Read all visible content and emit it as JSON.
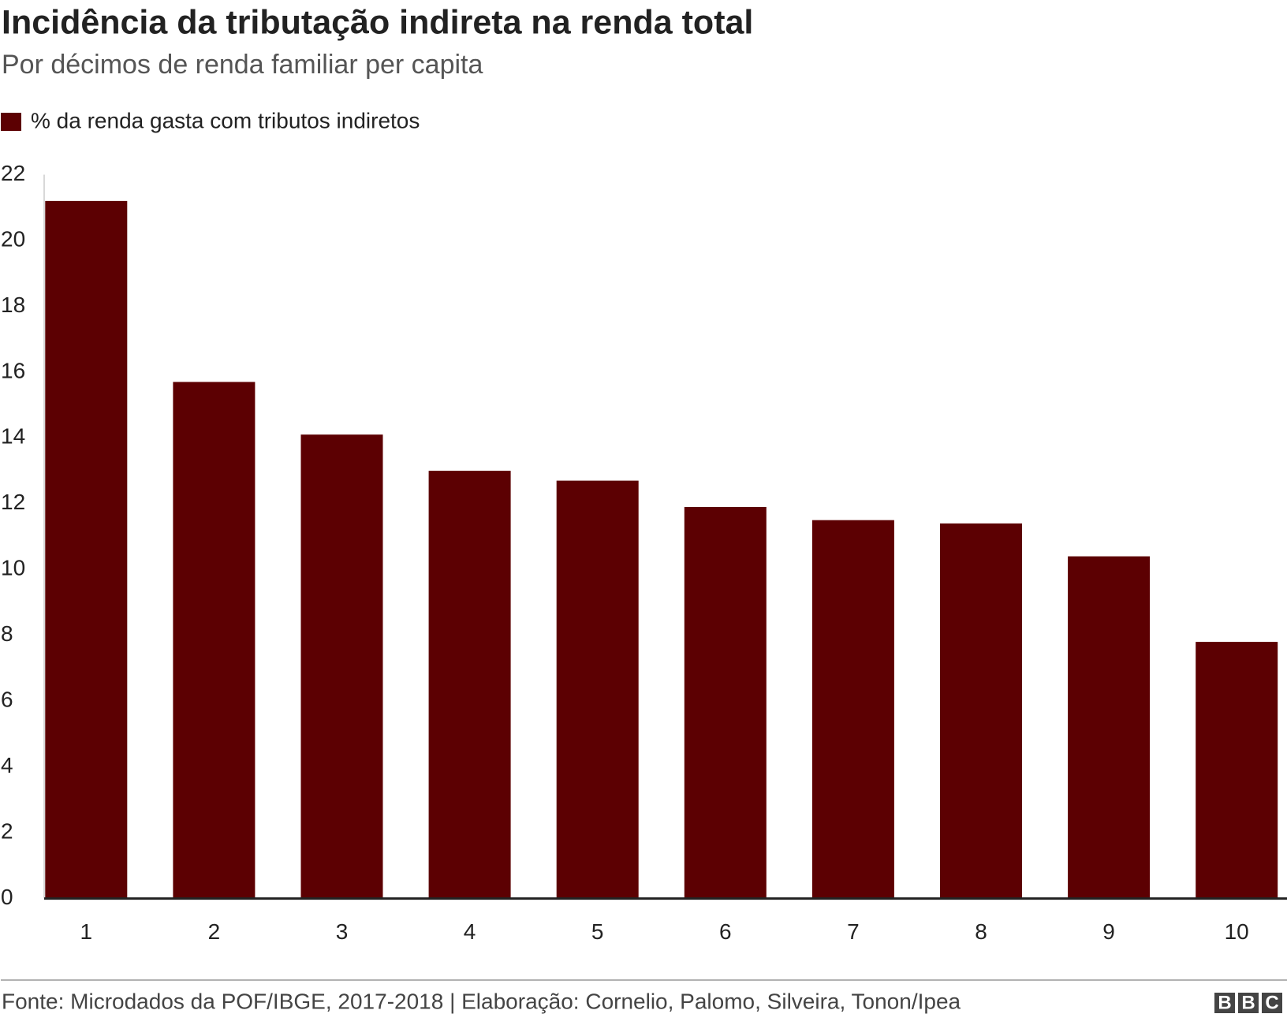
{
  "chart_data": {
    "type": "bar",
    "title": "Incidência da tributação indireta na renda total",
    "subtitle": "Por décimos de renda familiar per capita",
    "categories": [
      "1",
      "2",
      "3",
      "4",
      "5",
      "6",
      "7",
      "8",
      "9",
      "10"
    ],
    "series": [
      {
        "name": "% da renda gasta com tributos indiretos",
        "color": "#5c0002",
        "values": [
          21.2,
          15.7,
          14.1,
          13.0,
          12.7,
          11.9,
          11.5,
          11.4,
          10.4,
          7.8
        ]
      }
    ],
    "ylim": [
      0,
      22
    ],
    "yticks": [
      0,
      2,
      4,
      6,
      8,
      10,
      12,
      14,
      16,
      18,
      20,
      22
    ],
    "grid": false,
    "source": "Fonte: Microdados da POF/IBGE, 2017-2018 | Elaboração: Cornelio, Palomo, Silveira, Tonon/Ipea",
    "logo": [
      "B",
      "B",
      "C"
    ]
  }
}
